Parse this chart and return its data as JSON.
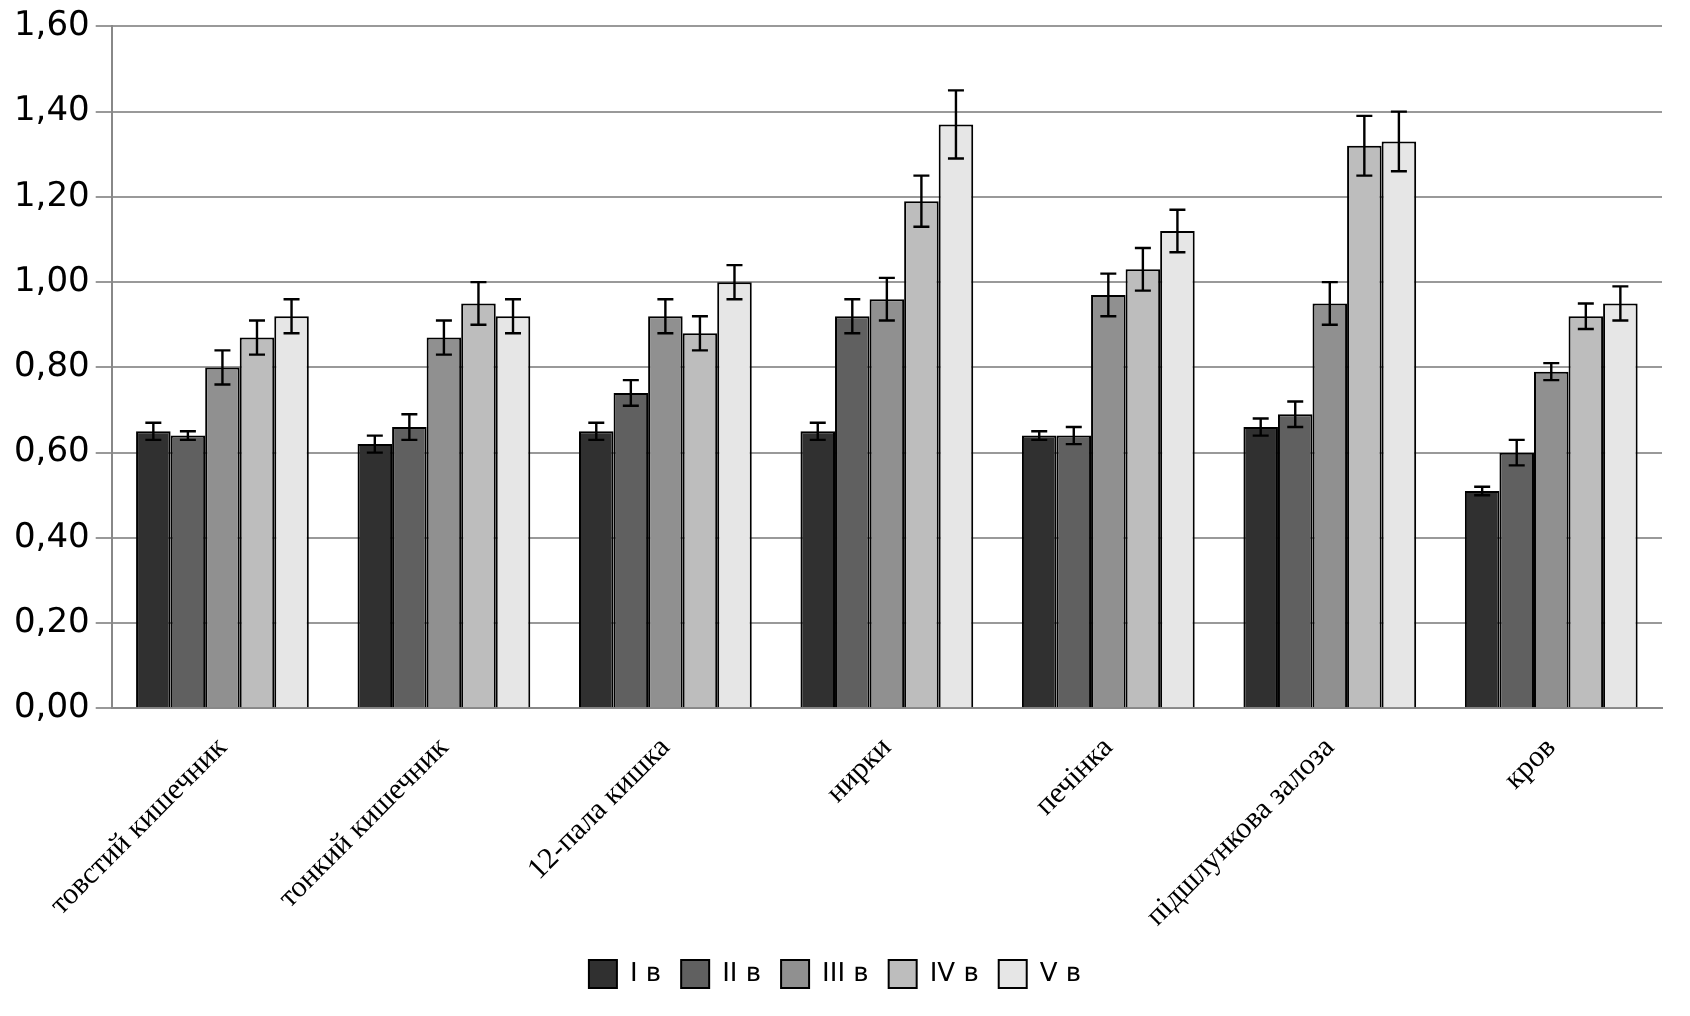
{
  "chart_data": {
    "type": "bar",
    "categories": [
      "товстий кишечник",
      "тонкий кишечник",
      "12-пала кишка",
      "нирки",
      "печінка",
      "підшлункова залоза",
      "кров"
    ],
    "series": [
      {
        "name": "I в",
        "color": "#303030",
        "values": [
          0.65,
          0.62,
          0.65,
          0.65,
          0.64,
          0.66,
          0.51
        ],
        "errors": [
          0.02,
          0.02,
          0.02,
          0.02,
          0.01,
          0.02,
          0.01
        ]
      },
      {
        "name": "II в",
        "color": "#606060",
        "values": [
          0.64,
          0.66,
          0.74,
          0.92,
          0.64,
          0.69,
          0.6
        ],
        "errors": [
          0.01,
          0.03,
          0.03,
          0.04,
          0.02,
          0.03,
          0.03
        ]
      },
      {
        "name": "III в",
        "color": "#909090",
        "values": [
          0.8,
          0.87,
          0.92,
          0.96,
          0.97,
          0.95,
          0.79
        ],
        "errors": [
          0.04,
          0.04,
          0.04,
          0.05,
          0.05,
          0.05,
          0.02
        ]
      },
      {
        "name": "IV в",
        "color": "#bdbdbd",
        "values": [
          0.87,
          0.95,
          0.88,
          1.19,
          1.03,
          1.32,
          0.92
        ],
        "errors": [
          0.04,
          0.05,
          0.04,
          0.06,
          0.05,
          0.07,
          0.03
        ]
      },
      {
        "name": "V в",
        "color": "#e6e6e6",
        "values": [
          0.92,
          0.92,
          1.0,
          1.37,
          1.12,
          1.33,
          0.95
        ],
        "errors": [
          0.04,
          0.04,
          0.04,
          0.08,
          0.05,
          0.07,
          0.04
        ]
      }
    ],
    "ylim": [
      0,
      1.6
    ],
    "yticks": [
      {
        "value": 0,
        "label": "0,00"
      },
      {
        "value": 0.2,
        "label": "0,20"
      },
      {
        "value": 0.4,
        "label": "0,40"
      },
      {
        "value": 0.6,
        "label": "0,60"
      },
      {
        "value": 0.8,
        "label": "0,80"
      },
      {
        "value": 1,
        "label": "1,00"
      },
      {
        "value": 1.2,
        "label": "1,20"
      },
      {
        "value": 1.4,
        "label": "1,40"
      },
      {
        "value": 1.6,
        "label": "1,60"
      }
    ],
    "grid": "y",
    "legend": "bottom"
  }
}
